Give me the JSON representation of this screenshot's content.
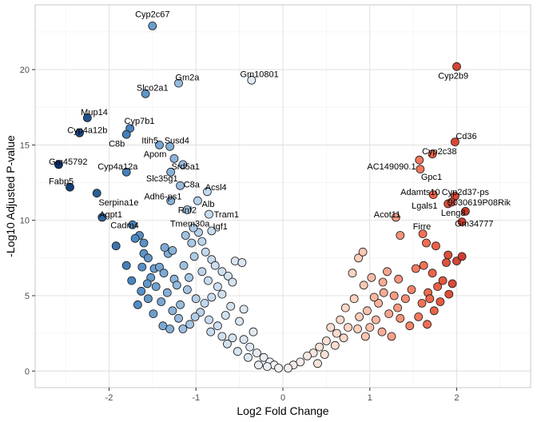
{
  "chart_data": {
    "type": "scatter",
    "title": "",
    "xlabel": "Log2 Fold Change",
    "ylabel": "-Log10 Adjusted P-value",
    "xlim": [
      -2.85,
      2.85
    ],
    "ylim": [
      -1.1,
      24.3
    ],
    "x_ticks": [
      -2,
      -1,
      0,
      1,
      2
    ],
    "y_ticks": [
      0,
      5,
      10,
      15,
      20
    ],
    "grid": true,
    "legend": "none",
    "color_scale": {
      "down_strong": "#08306b",
      "down_mid": "#4a88c2",
      "down_light": "#c6dbef",
      "neutral": "#f4f4f4",
      "up_light": "#fdd0bd",
      "up_mid": "#ef6548",
      "up_strong": "#99000d"
    },
    "labeled_points": [
      {
        "gene": "Cyp2c67",
        "x": -1.5,
        "y": 22.9,
        "lx": -1.5,
        "ly": 23.7,
        "anchor": "middle"
      },
      {
        "gene": "Cyp2b9",
        "x": 2.0,
        "y": 20.2,
        "lx": 1.96,
        "ly": 19.6,
        "anchor": "middle"
      },
      {
        "gene": "Gm10801",
        "x": -0.36,
        "y": 19.3,
        "lx": -0.27,
        "ly": 19.7,
        "anchor": "middle"
      },
      {
        "gene": "Gm2a",
        "x": -1.2,
        "y": 19.1,
        "lx": -1.1,
        "ly": 19.5,
        "anchor": "middle"
      },
      {
        "gene": "Slco2a1",
        "x": -1.58,
        "y": 18.4,
        "lx": -1.5,
        "ly": 18.8,
        "anchor": "middle"
      },
      {
        "gene": "Mup14",
        "x": -2.25,
        "y": 16.8,
        "lx": -2.17,
        "ly": 17.2,
        "anchor": "middle"
      },
      {
        "gene": "Cyp7b1",
        "x": -1.76,
        "y": 16.1,
        "lx": -1.65,
        "ly": 16.6,
        "anchor": "middle"
      },
      {
        "gene": "Cyp4a12b",
        "x": -2.34,
        "y": 15.8,
        "lx": -2.25,
        "ly": 16.0,
        "anchor": "middle"
      },
      {
        "gene": "C8b",
        "x": -1.8,
        "y": 15.7,
        "lx": -1.91,
        "ly": 15.1,
        "anchor": "middle"
      },
      {
        "gene": "Itih5",
        "x": -1.42,
        "y": 15.0,
        "lx": -1.53,
        "ly": 15.3,
        "anchor": "middle"
      },
      {
        "gene": "Susd4",
        "x": -1.3,
        "y": 14.9,
        "lx": -1.22,
        "ly": 15.3,
        "anchor": "middle"
      },
      {
        "gene": "Cd36",
        "x": 1.98,
        "y": 15.2,
        "lx": 2.11,
        "ly": 15.6,
        "anchor": "middle"
      },
      {
        "gene": "Apom",
        "x": -1.25,
        "y": 14.1,
        "lx": -1.47,
        "ly": 14.4,
        "anchor": "middle"
      },
      {
        "gene": "Cyp2c38",
        "x": 1.72,
        "y": 14.4,
        "lx": 1.8,
        "ly": 14.6,
        "anchor": "middle"
      },
      {
        "gene": "Gm45792",
        "x": -2.58,
        "y": 13.7,
        "lx": -2.47,
        "ly": 13.9,
        "anchor": "middle"
      },
      {
        "gene": "Srd5a1",
        "x": -1.15,
        "y": 13.7,
        "lx": -1.12,
        "ly": 13.6,
        "anchor": "middle"
      },
      {
        "gene": "AC149090.1",
        "x": 1.57,
        "y": 14.0,
        "lx": 1.25,
        "ly": 13.6,
        "anchor": "middle"
      },
      {
        "gene": "Cyp4a12a",
        "x": -1.8,
        "y": 13.2,
        "lx": -1.9,
        "ly": 13.6,
        "anchor": "middle"
      },
      {
        "gene": "Gpc1",
        "x": 1.58,
        "y": 13.4,
        "lx": 1.71,
        "ly": 12.9,
        "anchor": "middle"
      },
      {
        "gene": "Slc35g1",
        "x": -1.29,
        "y": 13.2,
        "lx": -1.39,
        "ly": 12.8,
        "anchor": "middle"
      },
      {
        "gene": "C8a",
        "x": -1.18,
        "y": 12.3,
        "lx": -1.05,
        "ly": 12.4,
        "anchor": "middle"
      },
      {
        "gene": "Fabp5",
        "x": -2.45,
        "y": 12.2,
        "lx": -2.55,
        "ly": 12.6,
        "anchor": "middle"
      },
      {
        "gene": "Acsl4",
        "x": -0.87,
        "y": 11.9,
        "lx": -0.77,
        "ly": 12.2,
        "anchor": "middle"
      },
      {
        "gene": "Adamts10",
        "x": 1.73,
        "y": 11.7,
        "lx": 1.58,
        "ly": 11.9,
        "anchor": "middle"
      },
      {
        "gene": "Cyp2d37-ps",
        "x": 1.98,
        "y": 11.6,
        "lx": 2.1,
        "ly": 11.9,
        "anchor": "middle"
      },
      {
        "gene": "Adh6-ps1",
        "x": -1.29,
        "y": 11.3,
        "lx": -1.38,
        "ly": 11.6,
        "anchor": "middle"
      },
      {
        "gene": "Serpina1e",
        "x": -2.14,
        "y": 11.8,
        "lx": -1.89,
        "ly": 11.2,
        "anchor": "middle"
      },
      {
        "gene": "Alb",
        "x": -0.98,
        "y": 11.3,
        "lx": -0.86,
        "ly": 11.1,
        "anchor": "middle"
      },
      {
        "gene": "Lgals1",
        "x": 1.9,
        "y": 11.1,
        "lx": 1.63,
        "ly": 11.0,
        "anchor": "middle"
      },
      {
        "gene": "9030619P08Rik",
        "x": 1.94,
        "y": 11.2,
        "lx": 2.26,
        "ly": 11.2,
        "anchor": "middle"
      },
      {
        "gene": "Rnf2",
        "x": -1.1,
        "y": 10.7,
        "lx": -1.1,
        "ly": 10.7,
        "anchor": "middle"
      },
      {
        "gene": "Tram1",
        "x": -0.85,
        "y": 10.4,
        "lx": -0.65,
        "ly": 10.4,
        "anchor": "middle"
      },
      {
        "gene": "Leng8",
        "x": 2.1,
        "y": 10.6,
        "lx": 1.96,
        "ly": 10.5,
        "anchor": "middle"
      },
      {
        "gene": "Acot11",
        "x": 1.3,
        "y": 10.2,
        "lx": 1.2,
        "ly": 10.4,
        "anchor": "middle"
      },
      {
        "gene": "Agpt1",
        "x": -2.08,
        "y": 10.2,
        "lx": -1.98,
        "ly": 10.4,
        "anchor": "middle"
      },
      {
        "gene": "Gm34777",
        "x": 2.06,
        "y": 9.9,
        "lx": 2.2,
        "ly": 9.8,
        "anchor": "middle"
      },
      {
        "gene": "Cadm4",
        "x": -1.73,
        "y": 9.7,
        "lx": -1.82,
        "ly": 9.7,
        "anchor": "middle"
      },
      {
        "gene": "Tmem30a",
        "x": -1.03,
        "y": 9.5,
        "lx": -1.07,
        "ly": 9.8,
        "anchor": "middle"
      },
      {
        "gene": "Igf1",
        "x": -0.82,
        "y": 9.3,
        "lx": -0.72,
        "ly": 9.6,
        "anchor": "middle"
      },
      {
        "gene": "Firre",
        "x": 1.61,
        "y": 9.1,
        "lx": 1.6,
        "ly": 9.6,
        "anchor": "middle"
      }
    ],
    "unlabeled_points": [
      [
        -1.92,
        8.3
      ],
      [
        -1.65,
        9.0
      ],
      [
        -1.6,
        8.5
      ],
      [
        -1.6,
        7.8
      ],
      [
        -1.55,
        7.5
      ],
      [
        -1.62,
        6.9
      ],
      [
        -1.48,
        6.8
      ],
      [
        -1.42,
        6.9
      ],
      [
        -1.37,
        6.5
      ],
      [
        -1.52,
        6.2
      ],
      [
        -1.56,
        5.8
      ],
      [
        -1.63,
        5.3
      ],
      [
        -1.46,
        5.6
      ],
      [
        -1.4,
        4.6
      ],
      [
        -1.55,
        4.8
      ],
      [
        -1.49,
        3.8
      ],
      [
        -1.32,
        7.8
      ],
      [
        -1.33,
        5.2
      ],
      [
        -1.25,
        6.1
      ],
      [
        -1.27,
        4.0
      ],
      [
        -1.38,
        3.0
      ],
      [
        -1.3,
        2.8
      ],
      [
        -1.36,
        8.2
      ],
      [
        -1.27,
        8.0
      ],
      [
        -1.14,
        7.0
      ],
      [
        -1.08,
        6.2
      ],
      [
        -1.1,
        5.4
      ],
      [
        -1.02,
        7.6
      ],
      [
        -1.05,
        8.5
      ],
      [
        -1.12,
        9.0
      ],
      [
        -0.97,
        9.2
      ],
      [
        -0.93,
        8.6
      ],
      [
        -0.89,
        7.9
      ],
      [
        -0.82,
        7.4
      ],
      [
        -0.78,
        7.0
      ],
      [
        -0.7,
        6.6
      ],
      [
        -0.93,
        6.6
      ],
      [
        -0.86,
        6.0
      ],
      [
        -0.75,
        5.6
      ],
      [
        -0.7,
        5.1
      ],
      [
        -0.82,
        4.9
      ],
      [
        -0.9,
        4.5
      ],
      [
        -0.95,
        3.9
      ],
      [
        -1.01,
        3.6
      ],
      [
        -1.07,
        3.1
      ],
      [
        -1.15,
        2.8
      ],
      [
        -1.2,
        3.5
      ],
      [
        -1.18,
        4.4
      ],
      [
        -0.63,
        6.3
      ],
      [
        -0.55,
        7.3
      ],
      [
        -0.47,
        7.2
      ],
      [
        -0.6,
        4.3
      ],
      [
        -0.66,
        3.7
      ],
      [
        -0.75,
        3.0
      ],
      [
        -0.83,
        2.6
      ],
      [
        -0.58,
        2.2
      ],
      [
        -0.5,
        3.3
      ],
      [
        -0.45,
        2.1
      ],
      [
        -0.38,
        1.6
      ],
      [
        -0.3,
        1.2
      ],
      [
        -0.22,
        0.9
      ],
      [
        -0.15,
        0.6
      ],
      [
        -0.1,
        0.4
      ],
      [
        -0.05,
        0.2
      ],
      [
        -0.4,
        0.9
      ],
      [
        -0.28,
        0.4
      ],
      [
        -0.18,
        0.3
      ],
      [
        -0.52,
        1.3
      ],
      [
        -0.64,
        1.8
      ],
      [
        -0.7,
        2.3
      ],
      [
        -0.34,
        2.6
      ],
      [
        -0.45,
        4.1
      ],
      [
        -1.7,
        8.8
      ],
      [
        -1.8,
        7.0
      ],
      [
        -1.74,
        6.0
      ],
      [
        -1.67,
        4.4
      ],
      [
        -1.22,
        5.7
      ],
      [
        -1.0,
        4.8
      ],
      [
        -0.58,
        5.9
      ],
      [
        -0.85,
        3.4
      ],
      [
        1.35,
        9.0
      ],
      [
        1.65,
        8.5
      ],
      [
        1.62,
        7.0
      ],
      [
        1.76,
        8.3
      ],
      [
        1.9,
        7.7
      ],
      [
        1.88,
        7.2
      ],
      [
        2.0,
        7.3
      ],
      [
        2.06,
        7.6
      ],
      [
        1.72,
        6.5
      ],
      [
        1.53,
        6.8
      ],
      [
        1.78,
        5.6
      ],
      [
        1.84,
        6.0
      ],
      [
        1.67,
        5.2
      ],
      [
        1.95,
        5.8
      ],
      [
        1.6,
        4.5
      ],
      [
        1.74,
        4.0
      ],
      [
        1.48,
        5.4
      ],
      [
        1.41,
        4.8
      ],
      [
        1.33,
        6.1
      ],
      [
        1.2,
        6.6
      ],
      [
        1.15,
        5.9
      ],
      [
        1.28,
        5.0
      ],
      [
        1.1,
        4.5
      ],
      [
        1.22,
        3.8
      ],
      [
        1.35,
        3.5
      ],
      [
        1.46,
        3.0
      ],
      [
        1.07,
        3.4
      ],
      [
        0.97,
        4.0
      ],
      [
        0.88,
        3.6
      ],
      [
        0.82,
        4.8
      ],
      [
        0.93,
        5.7
      ],
      [
        0.8,
        6.5
      ],
      [
        0.87,
        7.5
      ],
      [
        0.92,
        7.9
      ],
      [
        1.02,
        6.2
      ],
      [
        0.72,
        4.2
      ],
      [
        0.66,
        3.4
      ],
      [
        0.75,
        2.9
      ],
      [
        0.62,
        2.5
      ],
      [
        0.55,
        2.9
      ],
      [
        0.5,
        2.0
      ],
      [
        0.42,
        1.6
      ],
      [
        0.35,
        1.2
      ],
      [
        0.28,
        1.0
      ],
      [
        0.2,
        0.6
      ],
      [
        0.12,
        0.4
      ],
      [
        0.06,
        0.2
      ],
      [
        0.48,
        1.1
      ],
      [
        0.4,
        0.5
      ],
      [
        0.6,
        1.7
      ],
      [
        0.7,
        2.2
      ],
      [
        0.86,
        2.8
      ],
      [
        1.0,
        2.9
      ],
      [
        1.14,
        2.6
      ],
      [
        1.25,
        2.3
      ],
      [
        0.95,
        2.3
      ],
      [
        1.56,
        3.6
      ],
      [
        1.66,
        3.1
      ],
      [
        1.81,
        4.6
      ],
      [
        1.91,
        5.1
      ],
      [
        1.69,
        4.8
      ],
      [
        1.32,
        4.2
      ],
      [
        1.16,
        5.2
      ],
      [
        1.05,
        4.9
      ]
    ]
  }
}
